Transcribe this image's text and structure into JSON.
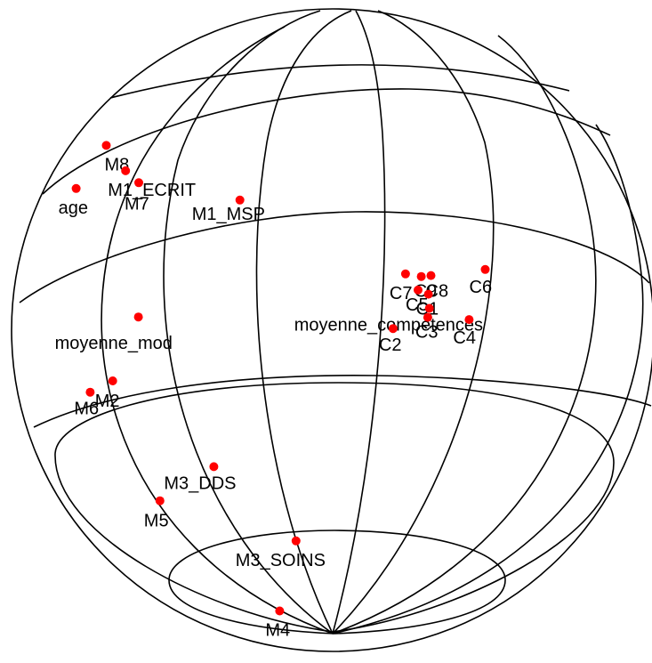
{
  "chart_data": {
    "type": "scatter",
    "title": "",
    "point_color": "#ff0000",
    "line_color": "#000000",
    "grid": true,
    "points": [
      {
        "label": "M8",
        "x": -0.705,
        "y": 0.575
      },
      {
        "label": "M1_ECRIT",
        "x": -0.645,
        "y": 0.496
      },
      {
        "label": "M7",
        "x": -0.604,
        "y": 0.459
      },
      {
        "label": "age",
        "x": -0.799,
        "y": 0.441
      },
      {
        "label": "M1_MSP",
        "x": -0.289,
        "y": 0.405
      },
      {
        "label": "C7",
        "x": 0.227,
        "y": 0.175
      },
      {
        "label": "C9",
        "x": 0.276,
        "y": 0.167
      },
      {
        "label": "C8",
        "x": 0.306,
        "y": 0.17
      },
      {
        "label": "C6",
        "x": 0.475,
        "y": 0.189
      },
      {
        "label": "C5",
        "x": 0.266,
        "y": 0.125
      },
      {
        "label": "C1",
        "x": 0.298,
        "y": 0.112
      },
      {
        "label": "moyenne_competences",
        "x": 0.301,
        "y": 0.068
      },
      {
        "label": "C3",
        "x": 0.296,
        "y": 0.04
      },
      {
        "label": "C4",
        "x": 0.425,
        "y": 0.033
      },
      {
        "label": "C2",
        "x": 0.188,
        "y": 0.005
      },
      {
        "label": "moyenne_mod",
        "x": -0.605,
        "y": 0.041
      },
      {
        "label": "M2",
        "x": -0.685,
        "y": -0.158
      },
      {
        "label": "M6",
        "x": -0.755,
        "y": -0.193
      },
      {
        "label": "M3_DDS",
        "x": -0.37,
        "y": -0.425
      },
      {
        "label": "M5",
        "x": -0.538,
        "y": -0.531
      },
      {
        "label": "M3_SOINS",
        "x": -0.114,
        "y": -0.656
      },
      {
        "label": "M4",
        "x": -0.165,
        "y": -0.874
      }
    ]
  }
}
